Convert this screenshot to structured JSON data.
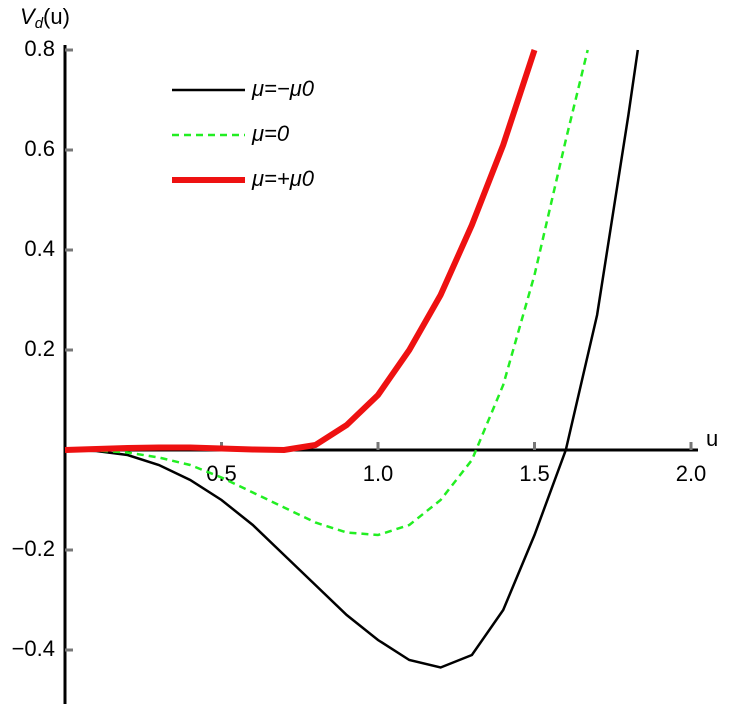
{
  "chart_data": {
    "type": "line",
    "y_label": [
      "V",
      "d",
      "(u)"
    ],
    "x_label": "u",
    "xlim": [
      0,
      2.0
    ],
    "ylim": [
      -0.5,
      0.8
    ],
    "xticks": [
      0.5,
      {
        "value": 1,
        "label": "1.0"
      },
      1.5,
      {
        "value": 2,
        "label": "2.0"
      }
    ],
    "yticks": [
      {
        "value": -0.4,
        "label": "−0.4"
      },
      {
        "value": -0.2,
        "label": "−0.2"
      },
      0.2,
      0.4,
      0.6,
      0.8
    ],
    "series": [
      {
        "name": "μ=−μ0",
        "color": "#000000",
        "width": 2.5,
        "dash": "none",
        "x": [
          0,
          0.1,
          0.2,
          0.3,
          0.4,
          0.5,
          0.6,
          0.7,
          0.8,
          0.9,
          1.0,
          1.1,
          1.2,
          1.3,
          1.4,
          1.5,
          1.6,
          1.7,
          1.8,
          1.83
        ],
        "values": [
          0,
          -0.002,
          -0.01,
          -0.03,
          -0.06,
          -0.1,
          -0.15,
          -0.21,
          -0.27,
          -0.33,
          -0.38,
          -0.42,
          -0.435,
          -0.41,
          -0.32,
          -0.17,
          0.0,
          0.27,
          0.67,
          0.8
        ]
      },
      {
        "name": "μ=0",
        "color": "#22ee22",
        "width": 2.5,
        "dash": "7,5",
        "x": [
          0,
          0.1,
          0.2,
          0.3,
          0.4,
          0.5,
          0.6,
          0.7,
          0.8,
          0.9,
          1.0,
          1.1,
          1.2,
          1.3,
          1.4,
          1.5,
          1.6,
          1.67
        ],
        "values": [
          0,
          -0.001,
          -0.005,
          -0.015,
          -0.03,
          -0.055,
          -0.085,
          -0.115,
          -0.145,
          -0.165,
          -0.17,
          -0.15,
          -0.1,
          -0.02,
          0.13,
          0.35,
          0.62,
          0.8
        ]
      },
      {
        "name": "μ=+μ0",
        "color": "#ee1111",
        "width": 6,
        "dash": "none",
        "x": [
          0,
          0.1,
          0.2,
          0.3,
          0.4,
          0.5,
          0.6,
          0.7,
          0.8,
          0.9,
          1.0,
          1.1,
          1.2,
          1.3,
          1.4,
          1.5
        ],
        "values": [
          0,
          0.002,
          0.004,
          0.005,
          0.005,
          0.003,
          0.001,
          0.0,
          0.01,
          0.05,
          0.11,
          0.2,
          0.31,
          0.45,
          0.61,
          0.8
        ]
      }
    ]
  }
}
